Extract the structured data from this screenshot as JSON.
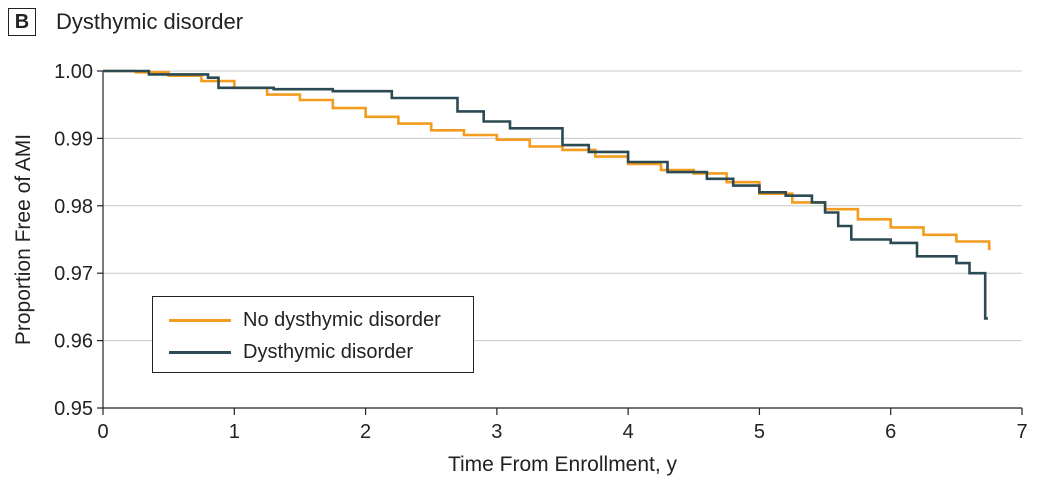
{
  "panel": {
    "letter": "B",
    "title": "Dysthymic disorder"
  },
  "chart_data": {
    "type": "line",
    "title": "Dysthymic disorder",
    "xlabel": "Time From Enrollment, y",
    "ylabel": "Proportion Free of AMI",
    "xlim": [
      0,
      7
    ],
    "ylim": [
      0.95,
      1.0
    ],
    "xticks": [
      0,
      1,
      2,
      3,
      4,
      5,
      6,
      7
    ],
    "yticks": [
      0.95,
      0.96,
      0.97,
      0.98,
      0.99,
      1.0
    ],
    "ytick_labels": [
      "0.95",
      "0.96",
      "0.97",
      "0.98",
      "0.99",
      "1.00"
    ],
    "grid": "horizontal",
    "legend_position": "bottom-left",
    "step": true,
    "series": [
      {
        "name": "No dysthymic disorder",
        "color": "#f39c1f",
        "x": [
          0,
          0.25,
          0.5,
          0.75,
          1.0,
          1.25,
          1.5,
          1.75,
          2.0,
          2.25,
          2.5,
          2.75,
          3.0,
          3.25,
          3.5,
          3.75,
          4.0,
          4.25,
          4.5,
          4.75,
          5.0,
          5.25,
          5.5,
          5.75,
          6.0,
          6.25,
          6.5,
          6.75
        ],
        "y": [
          1.0,
          0.9998,
          0.9993,
          0.9985,
          0.9975,
          0.9965,
          0.9957,
          0.9945,
          0.9932,
          0.9922,
          0.9912,
          0.9905,
          0.9898,
          0.9888,
          0.9883,
          0.9873,
          0.9862,
          0.9853,
          0.9848,
          0.9835,
          0.9818,
          0.9805,
          0.9795,
          0.978,
          0.9768,
          0.9757,
          0.9747,
          0.9736
        ]
      },
      {
        "name": "Dysthymic disorder",
        "color": "#2c4a54",
        "x": [
          0,
          0.35,
          0.8,
          0.88,
          1.3,
          1.75,
          2.2,
          2.7,
          2.9,
          3.1,
          3.5,
          3.7,
          4.0,
          4.3,
          4.6,
          4.8,
          5.0,
          5.2,
          5.4,
          5.5,
          5.6,
          5.7,
          6.0,
          6.2,
          6.5,
          6.6,
          6.72
        ],
        "y": [
          1.0,
          0.9995,
          0.999,
          0.9975,
          0.9973,
          0.997,
          0.996,
          0.994,
          0.9925,
          0.9915,
          0.989,
          0.988,
          0.9865,
          0.985,
          0.984,
          0.983,
          0.982,
          0.9815,
          0.9805,
          0.979,
          0.977,
          0.975,
          0.9745,
          0.9725,
          0.9715,
          0.97,
          0.9633
        ]
      }
    ]
  }
}
